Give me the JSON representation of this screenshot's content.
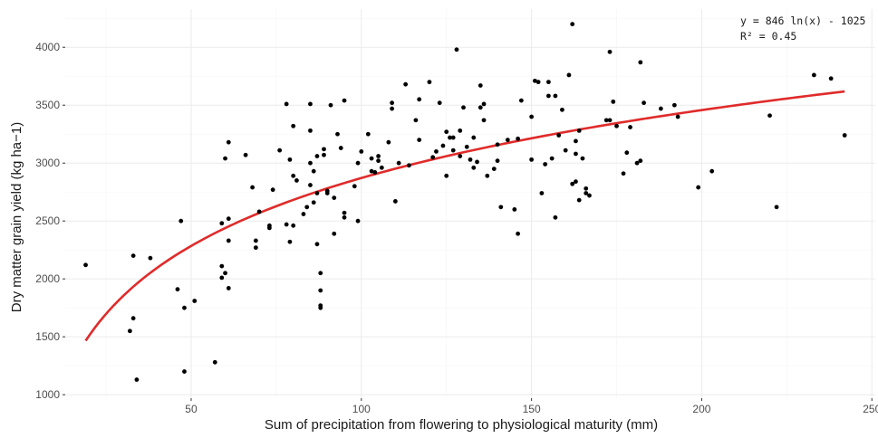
{
  "chart_data": {
    "type": "scatter",
    "xlabel": "Sum of precipitation from flowering to physiological maturity (mm)",
    "ylabel": "Dry matter grain yield (kg ha−1)",
    "xlim": [
      13,
      251
    ],
    "ylim": [
      970,
      4330
    ],
    "x_ticks": [
      50,
      100,
      150,
      200,
      250
    ],
    "y_ticks": [
      1000,
      1500,
      2000,
      2500,
      3000,
      3500,
      4000
    ],
    "grid": true,
    "annotation": [
      "y = 846 ln(x) - 1025",
      "R² = 0.45"
    ],
    "annotation_position": "top-right",
    "point_color": "#000000",
    "fit_color": "#e02b2b",
    "fit": {
      "type": "log",
      "a": 846,
      "b": -1025,
      "x_range": [
        19,
        242
      ]
    },
    "points": [
      [
        19,
        2120
      ],
      [
        32,
        1550
      ],
      [
        33,
        1660
      ],
      [
        33,
        2200
      ],
      [
        34,
        1130
      ],
      [
        38,
        2180
      ],
      [
        46,
        1910
      ],
      [
        47,
        2500
      ],
      [
        48,
        1750
      ],
      [
        48,
        1200
      ],
      [
        51,
        1810
      ],
      [
        57,
        1280
      ],
      [
        59,
        2110
      ],
      [
        59,
        2010
      ],
      [
        59,
        2480
      ],
      [
        60,
        3040
      ],
      [
        60,
        2050
      ],
      [
        61,
        1920
      ],
      [
        61,
        3180
      ],
      [
        61,
        2520
      ],
      [
        61,
        2330
      ],
      [
        66,
        3070
      ],
      [
        68,
        2790
      ],
      [
        69,
        2330
      ],
      [
        69,
        2270
      ],
      [
        70,
        2580
      ],
      [
        73,
        2460
      ],
      [
        73,
        2440
      ],
      [
        74,
        2770
      ],
      [
        76,
        3110
      ],
      [
        78,
        3510
      ],
      [
        78,
        2470
      ],
      [
        79,
        2320
      ],
      [
        79,
        3030
      ],
      [
        80,
        3320
      ],
      [
        80,
        2890
      ],
      [
        80,
        2460
      ],
      [
        81,
        2850
      ],
      [
        83,
        2560
      ],
      [
        84,
        2620
      ],
      [
        85,
        3510
      ],
      [
        85,
        3280
      ],
      [
        85,
        3000
      ],
      [
        85,
        2810
      ],
      [
        86,
        2930
      ],
      [
        86,
        2660
      ],
      [
        87,
        3060
      ],
      [
        87,
        2740
      ],
      [
        87,
        2300
      ],
      [
        88,
        2050
      ],
      [
        88,
        1900
      ],
      [
        88,
        1770
      ],
      [
        88,
        1750
      ],
      [
        89,
        3120
      ],
      [
        89,
        3070
      ],
      [
        90,
        2760
      ],
      [
        90,
        2740
      ],
      [
        91,
        3500
      ],
      [
        92,
        2700
      ],
      [
        92,
        2390
      ],
      [
        93,
        3250
      ],
      [
        94,
        3130
      ],
      [
        95,
        3540
      ],
      [
        95,
        2530
      ],
      [
        95,
        2570
      ],
      [
        98,
        2800
      ],
      [
        99,
        3000
      ],
      [
        99,
        2500
      ],
      [
        100,
        3100
      ],
      [
        102,
        3250
      ],
      [
        103,
        3040
      ],
      [
        103,
        2930
      ],
      [
        104,
        2920
      ],
      [
        105,
        3060
      ],
      [
        105,
        3020
      ],
      [
        106,
        2960
      ],
      [
        108,
        3180
      ],
      [
        109,
        3520
      ],
      [
        109,
        3470
      ],
      [
        110,
        2670
      ],
      [
        111,
        3000
      ],
      [
        113,
        3680
      ],
      [
        114,
        2980
      ],
      [
        116,
        3370
      ],
      [
        117,
        3550
      ],
      [
        117,
        3200
      ],
      [
        120,
        3700
      ],
      [
        121,
        3050
      ],
      [
        122,
        3100
      ],
      [
        123,
        3520
      ],
      [
        124,
        3150
      ],
      [
        125,
        2890
      ],
      [
        125,
        3270
      ],
      [
        126,
        3220
      ],
      [
        127,
        3220
      ],
      [
        127,
        3110
      ],
      [
        128,
        3980
      ],
      [
        129,
        3280
      ],
      [
        129,
        3060
      ],
      [
        130,
        3480
      ],
      [
        131,
        3140
      ],
      [
        132,
        3030
      ],
      [
        133,
        2960
      ],
      [
        133,
        3220
      ],
      [
        134,
        3010
      ],
      [
        135,
        3670
      ],
      [
        135,
        3480
      ],
      [
        136,
        3510
      ],
      [
        136,
        3370
      ],
      [
        137,
        2890
      ],
      [
        139,
        2950
      ],
      [
        140,
        3020
      ],
      [
        140,
        3160
      ],
      [
        141,
        2620
      ],
      [
        143,
        3200
      ],
      [
        145,
        2600
      ],
      [
        146,
        2390
      ],
      [
        146,
        3210
      ],
      [
        147,
        3540
      ],
      [
        150,
        3030
      ],
      [
        150,
        3400
      ],
      [
        151,
        3710
      ],
      [
        152,
        3700
      ],
      [
        153,
        2740
      ],
      [
        154,
        2990
      ],
      [
        155,
        3580
      ],
      [
        155,
        3700
      ],
      [
        156,
        3040
      ],
      [
        157,
        3580
      ],
      [
        157,
        2530
      ],
      [
        158,
        3240
      ],
      [
        159,
        3460
      ],
      [
        160,
        3110
      ],
      [
        161,
        3760
      ],
      [
        162,
        4200
      ],
      [
        162,
        2820
      ],
      [
        163,
        3080
      ],
      [
        163,
        3190
      ],
      [
        163,
        2840
      ],
      [
        164,
        2680
      ],
      [
        164,
        3280
      ],
      [
        165,
        3040
      ],
      [
        166,
        2780
      ],
      [
        166,
        2740
      ],
      [
        167,
        2720
      ],
      [
        172,
        3370
      ],
      [
        173,
        3370
      ],
      [
        173,
        3960
      ],
      [
        174,
        3530
      ],
      [
        175,
        3320
      ],
      [
        177,
        2910
      ],
      [
        178,
        3090
      ],
      [
        179,
        3310
      ],
      [
        181,
        3000
      ],
      [
        182,
        3020
      ],
      [
        182,
        3870
      ],
      [
        183,
        3520
      ],
      [
        188,
        3470
      ],
      [
        192,
        3500
      ],
      [
        193,
        3400
      ],
      [
        199,
        2790
      ],
      [
        203,
        2930
      ],
      [
        220,
        3410
      ],
      [
        222,
        2620
      ],
      [
        233,
        3760
      ],
      [
        238,
        3730
      ],
      [
        242,
        3240
      ]
    ]
  }
}
